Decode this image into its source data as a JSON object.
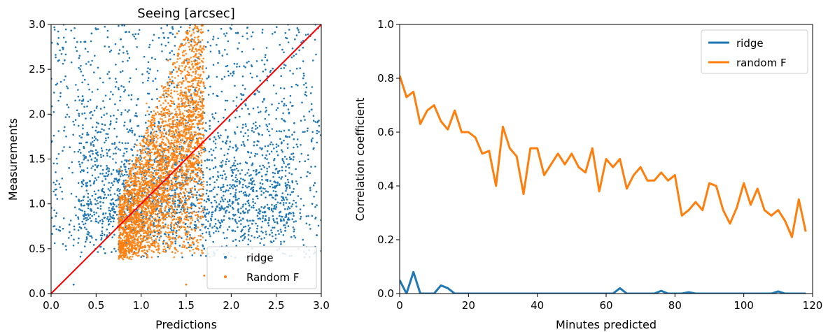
{
  "chart_data": [
    {
      "type": "scatter",
      "title": "Seeing [arcsec]",
      "xlabel": "Predictions",
      "ylabel": "Measurements",
      "xlim": [
        0.0,
        3.0
      ],
      "ylim": [
        0.0,
        3.0
      ],
      "xticks": [
        "0.0",
        "0.5",
        "1.0",
        "1.5",
        "2.0",
        "2.5",
        "3.0"
      ],
      "yticks": [
        "0.0",
        "0.5",
        "1.0",
        "1.5",
        "2.0",
        "2.5",
        "3.0"
      ],
      "legend_position": "bottom-right",
      "reference_line": {
        "from": [
          0,
          0
        ],
        "to": [
          3,
          3
        ],
        "color": "#ff0000"
      },
      "series": [
        {
          "name": "ridge",
          "color": "#1f77b4",
          "description_of_distribution": "broad cloud across the full range; densest near x 0.8-2.0, y 0.5-1.5",
          "points": [
            [
              0.05,
              1.1
            ],
            [
              0.1,
              0.7
            ],
            [
              0.15,
              2.6
            ],
            [
              0.2,
              1.4
            ],
            [
              0.25,
              0.1
            ],
            [
              0.3,
              0.85
            ],
            [
              0.35,
              2.2
            ],
            [
              0.4,
              1.0
            ],
            [
              0.45,
              2.9
            ],
            [
              0.5,
              0.6
            ],
            [
              0.55,
              1.8
            ],
            [
              0.6,
              0.45
            ],
            [
              0.65,
              2.4
            ],
            [
              0.7,
              1.25
            ],
            [
              0.75,
              0.55
            ],
            [
              0.8,
              2.75
            ],
            [
              0.85,
              0.95
            ],
            [
              0.9,
              1.6
            ],
            [
              0.95,
              2.1
            ],
            [
              1.0,
              0.7
            ],
            [
              1.1,
              2.5
            ],
            [
              1.2,
              1.9
            ],
            [
              1.3,
              2.85
            ],
            [
              1.4,
              2.3
            ],
            [
              1.6,
              2.6
            ],
            [
              1.7,
              0.5
            ],
            [
              1.8,
              1.3
            ],
            [
              1.85,
              2.2
            ],
            [
              1.9,
              0.8
            ],
            [
              1.95,
              1.7
            ],
            [
              2.0,
              2.95
            ],
            [
              2.05,
              0.6
            ],
            [
              2.1,
              1.45
            ],
            [
              2.2,
              2.0
            ],
            [
              2.3,
              0.9
            ],
            [
              2.4,
              2.6
            ],
            [
              2.5,
              1.2
            ],
            [
              2.6,
              0.7
            ],
            [
              2.7,
              1.9
            ],
            [
              2.8,
              2.4
            ],
            [
              2.9,
              1.0
            ],
            [
              2.95,
              0.65
            ]
          ]
        },
        {
          "name": "Random F",
          "color": "#ff7f0e",
          "description_of_distribution": "dense vertical band at x 0.75-1.7; y 0.4-3.0, skewed along the diagonal",
          "points": [
            [
              0.8,
              0.5
            ],
            [
              0.85,
              0.6
            ],
            [
              0.9,
              0.7
            ],
            [
              1.0,
              0.8
            ],
            [
              1.05,
              1.0
            ],
            [
              1.1,
              0.9
            ],
            [
              1.2,
              1.1
            ],
            [
              1.25,
              1.3
            ],
            [
              1.3,
              1.5
            ],
            [
              1.35,
              1.2
            ],
            [
              1.4,
              1.7
            ],
            [
              1.45,
              1.9
            ],
            [
              1.5,
              2.2
            ],
            [
              1.55,
              2.5
            ],
            [
              1.6,
              2.8
            ],
            [
              1.65,
              2.4
            ],
            [
              1.3,
              2.6
            ],
            [
              1.4,
              2.9
            ],
            [
              1.2,
              2.0
            ],
            [
              1.1,
              1.6
            ],
            [
              1.0,
              1.4
            ],
            [
              0.95,
              1.2
            ],
            [
              1.5,
              1.0
            ],
            [
              1.6,
              0.7
            ],
            [
              1.7,
              0.2
            ],
            [
              1.5,
              0.1
            ]
          ]
        }
      ]
    },
    {
      "type": "line",
      "title": "",
      "xlabel": "Minutes predicted",
      "ylabel": "Correlation coefficient",
      "xlim": [
        0,
        120
      ],
      "ylim": [
        0.0,
        1.0
      ],
      "xticks": [
        "0",
        "20",
        "40",
        "60",
        "80",
        "100",
        "120"
      ],
      "yticks": [
        "0.0",
        "0.2",
        "0.4",
        "0.6",
        "0.8",
        "1.0"
      ],
      "legend_position": "top-right",
      "x": [
        0,
        2,
        4,
        6,
        8,
        10,
        12,
        14,
        16,
        18,
        20,
        22,
        24,
        26,
        28,
        30,
        32,
        34,
        36,
        38,
        40,
        42,
        44,
        46,
        48,
        50,
        52,
        54,
        56,
        58,
        60,
        62,
        64,
        66,
        68,
        70,
        72,
        74,
        76,
        78,
        80,
        82,
        84,
        86,
        88,
        90,
        92,
        94,
        96,
        98,
        100,
        102,
        104,
        106,
        108,
        110,
        112,
        114,
        116,
        118
      ],
      "series": [
        {
          "name": "ridge",
          "color": "#1f77b4",
          "values": [
            0.05,
            0.0,
            0.08,
            0.0,
            0.0,
            0.0,
            0.03,
            0.02,
            0.0,
            0.0,
            0.0,
            0.0,
            0.0,
            0.0,
            0.0,
            0.0,
            0.0,
            0.0,
            0.0,
            0.0,
            0.0,
            0.0,
            0.0,
            0.0,
            0.0,
            0.0,
            0.0,
            0.0,
            0.0,
            0.0,
            0.0,
            0.0,
            0.02,
            0.0,
            0.0,
            0.0,
            0.0,
            0.0,
            0.01,
            0.0,
            0.0,
            0.0,
            0.005,
            0.0,
            0.0,
            0.0,
            0.0,
            0.0,
            0.0,
            0.0,
            0.0,
            0.0,
            0.0,
            0.0,
            0.0,
            0.008,
            0.0,
            0.0,
            0.0,
            0.0
          ]
        },
        {
          "name": "random F",
          "color": "#ff7f0e",
          "values": [
            0.81,
            0.73,
            0.75,
            0.63,
            0.68,
            0.7,
            0.64,
            0.61,
            0.68,
            0.6,
            0.6,
            0.58,
            0.52,
            0.53,
            0.4,
            0.62,
            0.54,
            0.51,
            0.37,
            0.54,
            0.54,
            0.44,
            0.48,
            0.52,
            0.48,
            0.52,
            0.47,
            0.45,
            0.54,
            0.38,
            0.5,
            0.47,
            0.5,
            0.39,
            0.44,
            0.47,
            0.42,
            0.42,
            0.45,
            0.42,
            0.44,
            0.29,
            0.31,
            0.34,
            0.31,
            0.41,
            0.4,
            0.31,
            0.26,
            0.32,
            0.41,
            0.33,
            0.39,
            0.31,
            0.29,
            0.31,
            0.27,
            0.21,
            0.35,
            0.23
          ]
        }
      ]
    }
  ]
}
